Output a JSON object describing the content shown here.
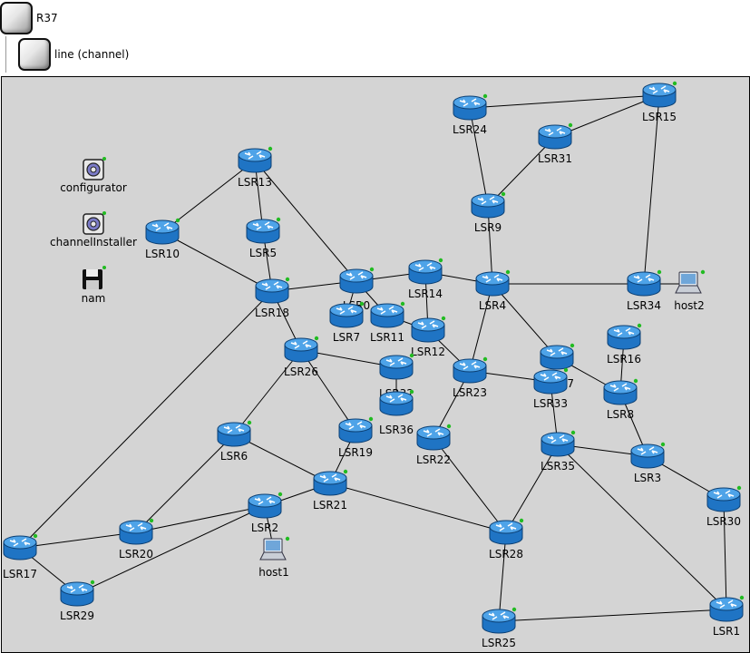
{
  "tree": {
    "root": {
      "label": "R37",
      "icon": "module-icon"
    },
    "child": {
      "label": "line (channel)",
      "icon": "module-icon"
    }
  },
  "colors": {
    "canvas": "#d4d4d4",
    "router_body": "#1f74c4",
    "router_top": "#4ea3e8",
    "status_dot": "#22bb22"
  },
  "misc_nodes": [
    {
      "name": "configurator",
      "label": "configurator",
      "icon": "gear-icon"
    },
    {
      "name": "channelinstaller",
      "label": "channelInstaller",
      "icon": "gear-icon"
    },
    {
      "name": "nam",
      "label": "nam",
      "icon": "floppy-disk-icon"
    }
  ],
  "routers": [
    {
      "id": "LSR24",
      "label": "LSR24"
    },
    {
      "id": "LSR15",
      "label": "LSR15"
    },
    {
      "id": "LSR31",
      "label": "LSR31"
    },
    {
      "id": "LSR13",
      "label": "LSR13"
    },
    {
      "id": "LSR9",
      "label": "LSR9"
    },
    {
      "id": "LSR10",
      "label": "LSR10"
    },
    {
      "id": "LSR5",
      "label": "LSR5"
    },
    {
      "id": "LSR14",
      "label": "LSR14"
    },
    {
      "id": "LSR0",
      "label": "LSR0"
    },
    {
      "id": "LSR4",
      "label": "LSR4"
    },
    {
      "id": "LSR34",
      "label": "LSR34"
    },
    {
      "id": "LSR18",
      "label": "LSR18"
    },
    {
      "id": "LSR7",
      "label": "LSR7"
    },
    {
      "id": "LSR11",
      "label": "LSR11"
    },
    {
      "id": "LSR12",
      "label": "LSR12"
    },
    {
      "id": "LSR16",
      "label": "LSR16"
    },
    {
      "id": "LSR26",
      "label": "LSR26"
    },
    {
      "id": "LSR27",
      "label": "LSR27"
    },
    {
      "id": "LSR32",
      "label": "LSR32"
    },
    {
      "id": "LSR23",
      "label": "LSR23"
    },
    {
      "id": "LSR33",
      "label": "LSR33"
    },
    {
      "id": "LSR8",
      "label": "LSR8"
    },
    {
      "id": "LSR36",
      "label": "LSR36"
    },
    {
      "id": "LSR6",
      "label": "LSR6"
    },
    {
      "id": "LSR19",
      "label": "LSR19"
    },
    {
      "id": "LSR22",
      "label": "LSR22"
    },
    {
      "id": "LSR35",
      "label": "LSR35"
    },
    {
      "id": "LSR3",
      "label": "LSR3"
    },
    {
      "id": "LSR21",
      "label": "LSR21"
    },
    {
      "id": "LSR2",
      "label": "LSR2"
    },
    {
      "id": "LSR30",
      "label": "LSR30"
    },
    {
      "id": "LSR20",
      "label": "LSR20"
    },
    {
      "id": "LSR28",
      "label": "LSR28"
    },
    {
      "id": "LSR17",
      "label": "LSR17"
    },
    {
      "id": "LSR29",
      "label": "LSR29"
    },
    {
      "id": "LSR25",
      "label": "LSR25"
    },
    {
      "id": "LSR1",
      "label": "LSR1"
    }
  ],
  "hosts": [
    {
      "id": "host2",
      "label": "host2"
    },
    {
      "id": "host1",
      "label": "host1"
    }
  ],
  "links": [
    [
      "LSR24",
      "LSR15"
    ],
    [
      "LSR24",
      "LSR9"
    ],
    [
      "LSR15",
      "LSR31"
    ],
    [
      "LSR15",
      "LSR34"
    ],
    [
      "LSR31",
      "LSR9"
    ],
    [
      "LSR9",
      "LSR4"
    ],
    [
      "LSR13",
      "LSR10"
    ],
    [
      "LSR13",
      "LSR5"
    ],
    [
      "LSR13",
      "LSR0"
    ],
    [
      "LSR10",
      "LSR18"
    ],
    [
      "LSR5",
      "LSR18"
    ],
    [
      "LSR18",
      "LSR0"
    ],
    [
      "LSR0",
      "LSR14"
    ],
    [
      "LSR14",
      "LSR4"
    ],
    [
      "LSR4",
      "LSR34"
    ],
    [
      "LSR34",
      "host2"
    ],
    [
      "LSR0",
      "LSR7"
    ],
    [
      "LSR0",
      "LSR11"
    ],
    [
      "LSR14",
      "LSR12"
    ],
    [
      "LSR11",
      "LSR12"
    ],
    [
      "LSR12",
      "LSR23"
    ],
    [
      "LSR4",
      "LSR23"
    ],
    [
      "LSR4",
      "LSR27"
    ],
    [
      "LSR27",
      "LSR8"
    ],
    [
      "LSR16",
      "LSR8"
    ],
    [
      "LSR18",
      "LSR26"
    ],
    [
      "LSR18",
      "LSR17"
    ],
    [
      "LSR26",
      "LSR32"
    ],
    [
      "LSR26",
      "LSR19"
    ],
    [
      "LSR26",
      "LSR6"
    ],
    [
      "LSR23",
      "LSR33"
    ],
    [
      "LSR23",
      "LSR22"
    ],
    [
      "LSR33",
      "LSR35"
    ],
    [
      "LSR8",
      "LSR3"
    ],
    [
      "LSR32",
      "LSR36"
    ],
    [
      "LSR6",
      "LSR21"
    ],
    [
      "LSR6",
      "LSR20"
    ],
    [
      "LSR19",
      "LSR21"
    ],
    [
      "LSR21",
      "LSR2"
    ],
    [
      "LSR21",
      "LSR28"
    ],
    [
      "LSR22",
      "LSR28"
    ],
    [
      "LSR35",
      "LSR28"
    ],
    [
      "LSR35",
      "LSR3"
    ],
    [
      "LSR35",
      "LSR1"
    ],
    [
      "LSR3",
      "LSR30"
    ],
    [
      "LSR30",
      "LSR1"
    ],
    [
      "LSR2",
      "LSR20"
    ],
    [
      "LSR2",
      "LSR29"
    ],
    [
      "LSR2",
      "host1"
    ],
    [
      "LSR20",
      "LSR17"
    ],
    [
      "LSR17",
      "LSR29"
    ],
    [
      "LSR28",
      "LSR25"
    ],
    [
      "LSR25",
      "LSR1"
    ]
  ]
}
